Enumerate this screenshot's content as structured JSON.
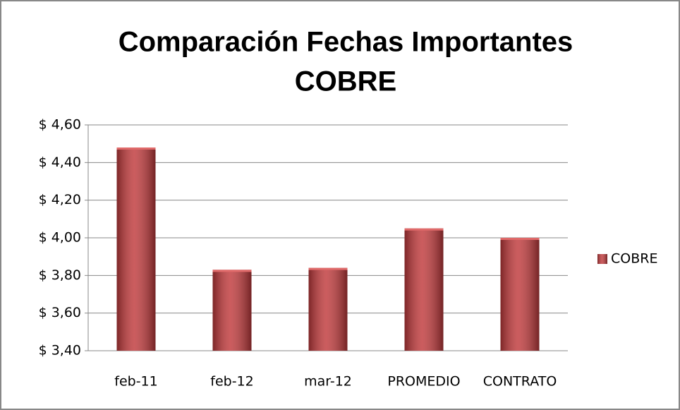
{
  "chart_data": {
    "type": "bar",
    "title": [
      "Comparación Fechas Importantes",
      "COBRE"
    ],
    "categories": [
      "feb-11",
      "feb-12",
      "mar-12",
      "PROMEDIO",
      "CONTRATO"
    ],
    "series": [
      {
        "name": "COBRE",
        "color": "#c0393b",
        "values": [
          4.48,
          3.83,
          3.84,
          4.05,
          4.0
        ]
      }
    ],
    "ylim": [
      3.4,
      4.6
    ],
    "yticks": [
      {
        "value": 3.4,
        "label": "$ 3,40"
      },
      {
        "value": 3.6,
        "label": "$ 3,60"
      },
      {
        "value": 3.8,
        "label": "$ 3,80"
      },
      {
        "value": 4.0,
        "label": "$ 4,00"
      },
      {
        "value": 4.2,
        "label": "$ 4,20"
      },
      {
        "value": 4.4,
        "label": "$ 4,40"
      },
      {
        "value": 4.6,
        "label": "$ 4,60"
      }
    ],
    "grid": true,
    "legend": "right"
  }
}
